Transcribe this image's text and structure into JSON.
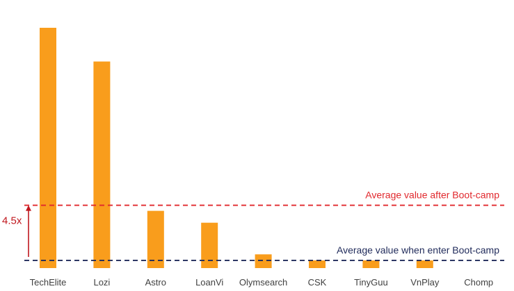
{
  "chart_data": {
    "type": "bar",
    "categories": [
      "TechElite",
      "Lozi",
      "Astro",
      "LoanVi",
      "Olymsearch",
      "CSK",
      "TinyGuu",
      "VnPlay",
      "Chomp"
    ],
    "values": [
      100,
      85.5,
      21.3,
      16.2,
      2.6,
      0,
      0,
      0,
      -3.3
    ],
    "ylim": [
      -3.3,
      100
    ],
    "grid": false,
    "legend": "none",
    "bar_color": "#F99D1C",
    "reference_lines": [
      {
        "label": "Average value after Boot-camp",
        "value": 23.7,
        "color": "#E1282D",
        "style": "dashed"
      },
      {
        "label": "Average value when enter Boot-camp",
        "value": 0,
        "color": "#1F2A5A",
        "style": "dashed"
      }
    ],
    "annotation": {
      "label": "4.5x",
      "color": "#C0171E"
    }
  }
}
